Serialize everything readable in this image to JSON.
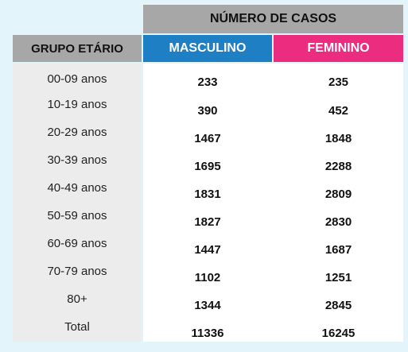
{
  "header": {
    "cases_title": "NÚMERO DE CASOS",
    "group_title": "GRUPO ETÁRIO",
    "male_title": "MASCULINO",
    "female_title": "FEMININO"
  },
  "rows": [
    {
      "group": "00-09 anos",
      "male": "233",
      "female": "235"
    },
    {
      "group": "10-19 anos",
      "male": "390",
      "female": "452"
    },
    {
      "group": "20-29 anos",
      "male": "1467",
      "female": "1848"
    },
    {
      "group": "30-39 anos",
      "male": "1695",
      "female": "2288"
    },
    {
      "group": "40-49 anos",
      "male": "1831",
      "female": "2809"
    },
    {
      "group": "50-59 anos",
      "male": "1827",
      "female": "2830"
    },
    {
      "group": "60-69 anos",
      "male": "1447",
      "female": "1687"
    },
    {
      "group": "70-79 anos",
      "male": "1102",
      "female": "1251"
    },
    {
      "group": "80+",
      "male": "1344",
      "female": "2845"
    },
    {
      "group": "Total",
      "male": "11336",
      "female": "16245"
    }
  ],
  "colors": {
    "background": "#e3f4fb",
    "header_gray": "#a7a7a7",
    "male_blue": "#1f7fc4",
    "female_pink": "#ec2d7f",
    "group_column": "#ececec"
  }
}
